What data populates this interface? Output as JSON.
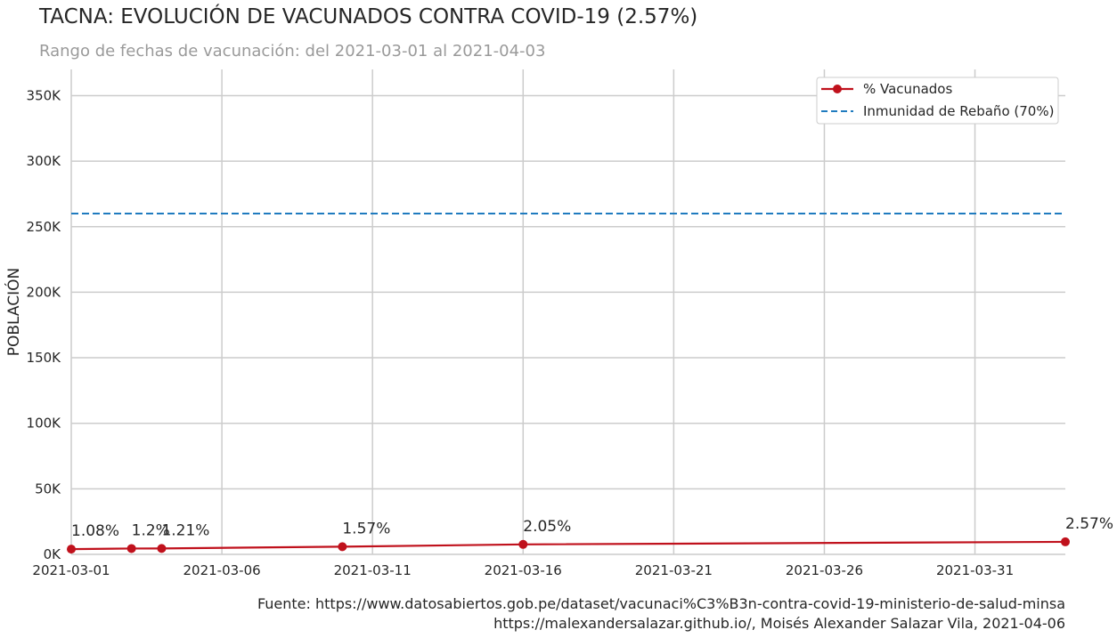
{
  "header": {
    "title": "TACNA: EVOLUCIÓN DE VACUNADOS CONTRA COVID-19 (2.57%)",
    "subtitle": "Rango de fechas de vacunación: del 2021-03-01 al 2021-04-03"
  },
  "footer": {
    "source_line": "Fuente: https://www.datosabiertos.gob.pe/dataset/vacunaci%C3%B3n-contra-covid-19-ministerio-de-salud-minsa",
    "credit_line": "https://malexandersalazar.github.io/, Moisés Alexander Salazar Vila, 2021-04-06"
  },
  "chart_data": {
    "type": "line",
    "title": "TACNA: EVOLUCIÓN DE VACUNADOS CONTRA COVID-19 (2.57%)",
    "ylabel": "POBLACIÓN",
    "xlabel": "",
    "xlim": [
      "2021-03-01",
      "2021-04-03"
    ],
    "ylim": [
      0,
      370000
    ],
    "x_ticks": [
      "2021-03-01",
      "2021-03-06",
      "2021-03-11",
      "2021-03-16",
      "2021-03-21",
      "2021-03-26",
      "2021-03-31"
    ],
    "y_ticks": [
      0,
      50000,
      100000,
      150000,
      200000,
      250000,
      300000,
      350000
    ],
    "y_tick_labels": [
      "0K",
      "50K",
      "100K",
      "150K",
      "200K",
      "250K",
      "300K",
      "350K"
    ],
    "grid": true,
    "legend_position": "top-right",
    "series": [
      {
        "name": "% Vacunados",
        "color": "#c0111c",
        "marker": "circle",
        "points": [
          {
            "x": "2021-03-01",
            "y": 4000,
            "label": "1.08%"
          },
          {
            "x": "2021-03-03",
            "y": 4450,
            "label": "1.2%"
          },
          {
            "x": "2021-03-04",
            "y": 4500,
            "label": "1.21%"
          },
          {
            "x": "2021-03-10",
            "y": 5850,
            "label": "1.57%"
          },
          {
            "x": "2021-03-16",
            "y": 7600,
            "label": "2.05%"
          },
          {
            "x": "2021-04-03",
            "y": 9550,
            "label": "2.57%"
          }
        ]
      },
      {
        "name": "Inmunidad de Rebaño (70%)",
        "color": "#1f7bbf",
        "style": "dashed",
        "y": 260000
      }
    ]
  }
}
